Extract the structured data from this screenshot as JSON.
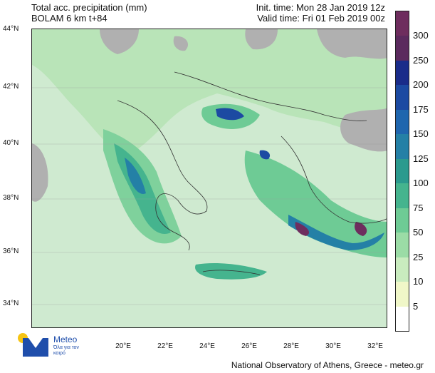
{
  "header": {
    "title_line1": "Total acc. precipitation (mm)",
    "title_line2": "BOLAM 6 km t+84",
    "init_time": "Init. time: Mon 28 Jan 2019 12z",
    "valid_time": "Valid time: Fri 01 Feb 2019 00z"
  },
  "map": {
    "lat_labels": [
      "44°N",
      "42°N",
      "40°N",
      "38°N",
      "36°N",
      "34°N"
    ],
    "lon_labels": [
      "20°E",
      "22°E",
      "24°E",
      "26°E",
      "28°E",
      "30°E",
      "32°E"
    ],
    "land_color": "#b0b0b0",
    "sea_low_color": "#d9f0d3"
  },
  "colorbar": {
    "levels": [
      "5",
      "10",
      "25",
      "50",
      "75",
      "100",
      "125",
      "150",
      "175",
      "200",
      "250",
      "300"
    ],
    "colors": [
      "#ffffff",
      "#f0f7c8",
      "#c9ecbf",
      "#9bdca6",
      "#6ecb95",
      "#45b48e",
      "#2b9a8e",
      "#2480a6",
      "#1f66ae",
      "#1c4aa2",
      "#1a2c8a",
      "#5b2a5e",
      "#6e2d5e"
    ]
  },
  "logo": {
    "brand": "Meteo",
    "tagline": "Όλα για τον καιρό"
  },
  "footer": {
    "credit": "National Observatory of Athens, Greece - meteo.gr"
  }
}
